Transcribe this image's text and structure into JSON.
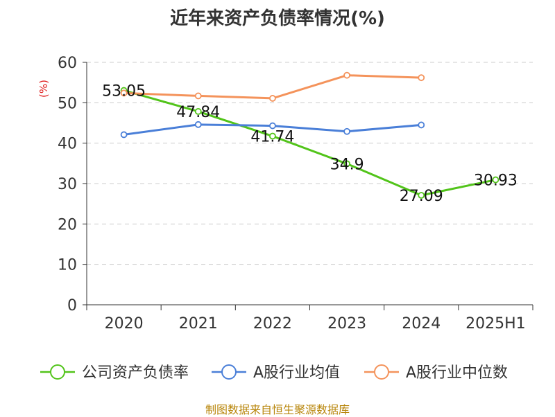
{
  "chart_data": {
    "type": "line",
    "title": "近年来资产负债率情况(%)",
    "ylabel": "(%)",
    "categories": [
      "2020",
      "2021",
      "2022",
      "2023",
      "2024",
      "2025H1"
    ],
    "ylim": [
      0,
      60
    ],
    "yticks": [
      0,
      10,
      20,
      30,
      40,
      50,
      60
    ],
    "grid": true,
    "legend_position": "bottom",
    "series": [
      {
        "name": "公司资产负债率",
        "color": "#52c41a",
        "values": [
          53.05,
          47.84,
          41.74,
          34.9,
          27.09,
          30.93
        ],
        "labels": [
          "53.05",
          "47.84",
          "41.74",
          "34.9",
          "27.09",
          "30.93"
        ]
      },
      {
        "name": "A股行业均值",
        "color": "#4a7fd8",
        "values": [
          42.1,
          44.6,
          44.3,
          42.9,
          44.5,
          null
        ]
      },
      {
        "name": "A股行业中位数",
        "color": "#f4935b",
        "values": [
          52.4,
          51.7,
          51.1,
          56.8,
          56.2,
          null
        ]
      }
    ]
  },
  "footer": {
    "source": "制图数据来自恒生聚源数据库"
  }
}
